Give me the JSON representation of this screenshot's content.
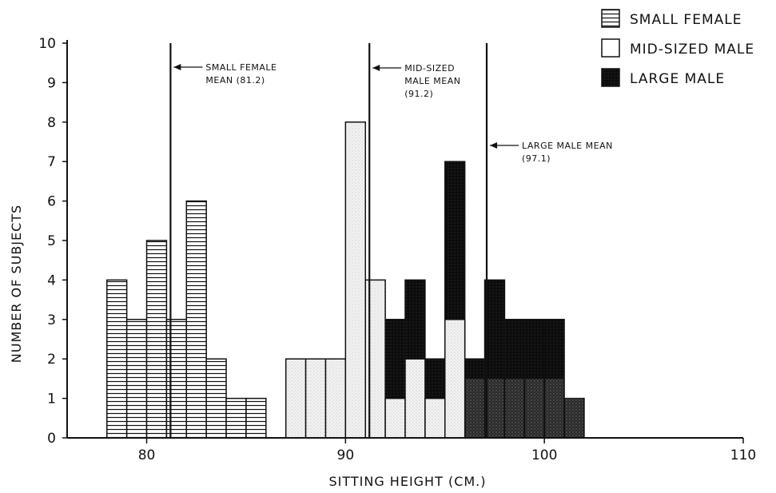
{
  "chart_data": {
    "type": "bar",
    "xlabel": "SITTING HEIGHT (CM.)",
    "ylabel": "NUMBER OF SUBJECTS",
    "xlim": [
      76,
      110
    ],
    "ylim": [
      0,
      10
    ],
    "x_ticks": [
      80,
      90,
      100,
      110
    ],
    "y_ticks": [
      0,
      1,
      2,
      3,
      4,
      5,
      6,
      7,
      8,
      9,
      10
    ],
    "bin_width": 1,
    "legend_position": "top-right",
    "legend": [
      "SMALL FEMALE",
      "MID-SIZED MALE",
      "LARGE MALE"
    ],
    "series": [
      {
        "name": "SMALL FEMALE",
        "pattern": "horizontal-hatch",
        "bins": [
          {
            "x": 78,
            "value": 4
          },
          {
            "x": 79,
            "value": 3
          },
          {
            "x": 80,
            "value": 5
          },
          {
            "x": 81,
            "value": 3
          },
          {
            "x": 82,
            "value": 6
          },
          {
            "x": 83,
            "value": 2
          },
          {
            "x": 84,
            "value": 1
          },
          {
            "x": 85,
            "value": 1
          }
        ]
      },
      {
        "name": "MID-SIZED MALE",
        "pattern": "light-stipple",
        "bins": [
          {
            "x": 87,
            "value": 2
          },
          {
            "x": 88,
            "value": 2
          },
          {
            "x": 89,
            "value": 2
          },
          {
            "x": 90,
            "value": 8
          },
          {
            "x": 91,
            "value": 4
          },
          {
            "x": 92,
            "value": 1
          },
          {
            "x": 93,
            "value": 2
          },
          {
            "x": 94,
            "value": 1
          },
          {
            "x": 95,
            "value": 3
          }
        ]
      },
      {
        "name": "LARGE MALE",
        "pattern": "dark",
        "bins": [
          {
            "x": 92,
            "value": 3
          },
          {
            "x": 93,
            "value": 4
          },
          {
            "x": 94,
            "value": 2
          },
          {
            "x": 95,
            "value": 7
          },
          {
            "x": 96,
            "value": 2
          },
          {
            "x": 97,
            "value": 4
          },
          {
            "x": 98,
            "value": 3
          },
          {
            "x": 99,
            "value": 3
          },
          {
            "x": 100,
            "value": 3
          },
          {
            "x": 101,
            "value": 1
          }
        ]
      }
    ],
    "reference_lines": [
      {
        "x": 81.2,
        "label_lines": [
          "SMALL FEMALE",
          "MEAN (81.2)"
        ]
      },
      {
        "x": 91.2,
        "label_lines": [
          "MID-SIZED",
          "MALE MEAN",
          "(91.2)"
        ]
      },
      {
        "x": 97.1,
        "label_lines": [
          "LARGE MALE MEAN",
          "(97.1)"
        ]
      }
    ]
  }
}
